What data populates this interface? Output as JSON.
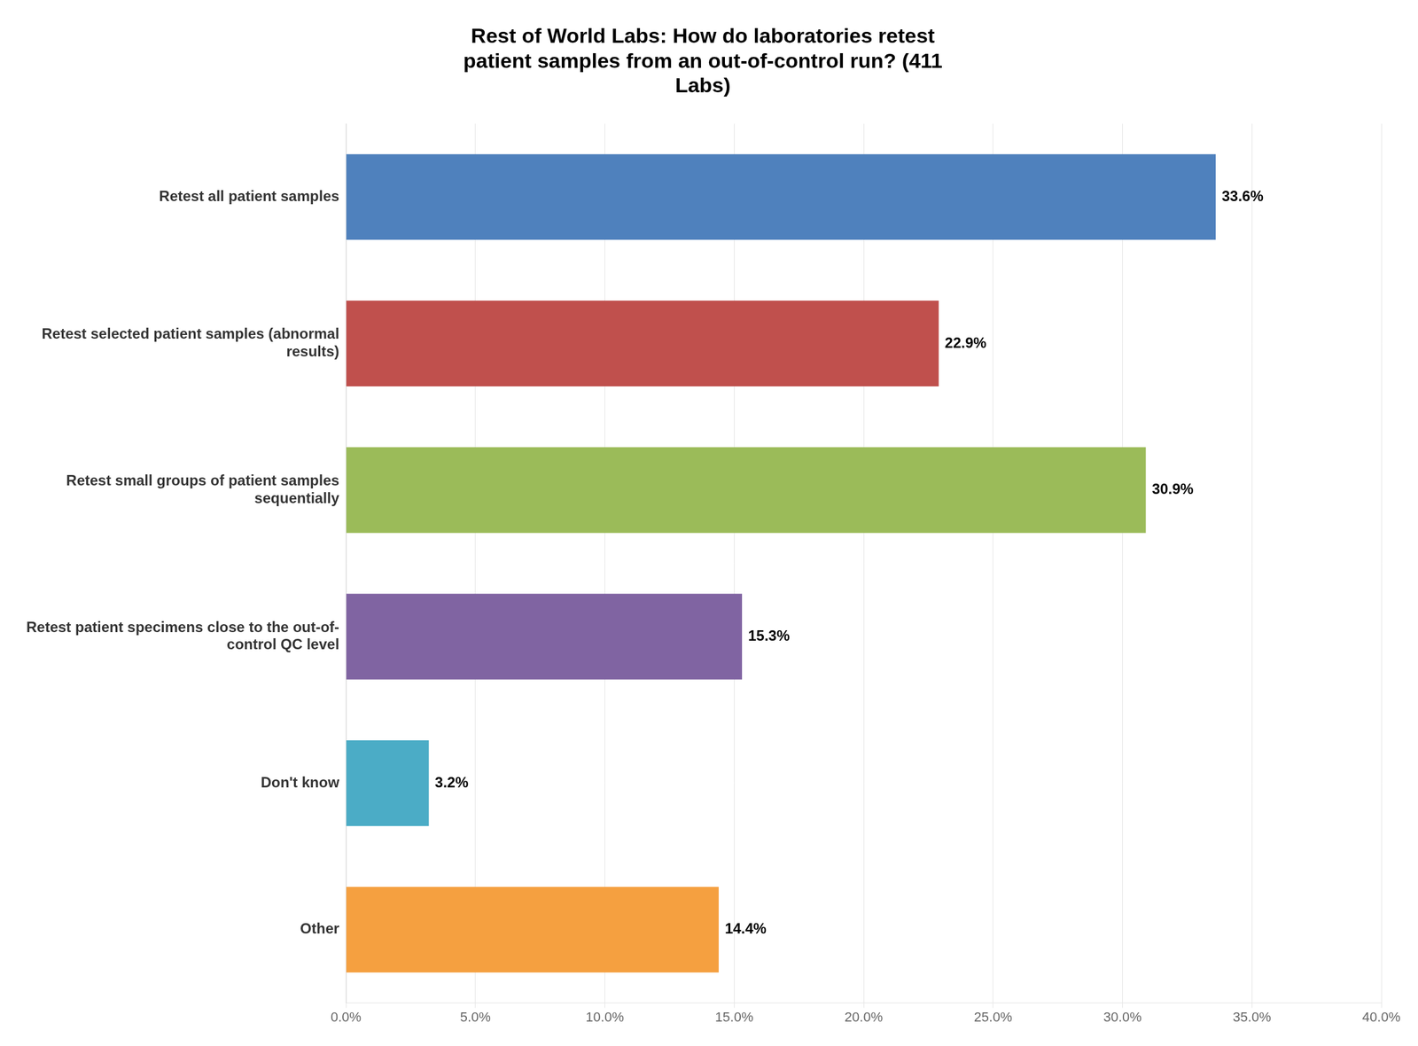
{
  "chart_data": {
    "type": "bar",
    "orientation": "horizontal",
    "title": "Rest of World Labs: How do laboratories retest\npatient samples from an out-of-control run? (411\nLabs)",
    "categories": [
      "Retest all patient samples",
      "Retest selected patient samples (abnormal\nresults)",
      "Retest small groups of patient samples\nsequentially",
      "Retest patient specimens close to the out-of-\ncontrol QC level",
      "Don't know",
      "Other"
    ],
    "values": [
      33.6,
      22.9,
      30.9,
      15.3,
      3.2,
      14.4
    ],
    "value_labels": [
      "33.6%",
      "22.9%",
      "30.9%",
      "15.3%",
      "3.2%",
      "14.4%"
    ],
    "colors": [
      "#4F81BD",
      "#C0504D",
      "#9BBB59",
      "#8064A2",
      "#4BACC6",
      "#F5A040"
    ],
    "data_labels": true,
    "xlim": [
      0,
      40
    ],
    "xticks": [
      {
        "value": 0,
        "label": "0.0%"
      },
      {
        "value": 5,
        "label": "5.0%"
      },
      {
        "value": 10,
        "label": "10.0%"
      },
      {
        "value": 15,
        "label": "15.0%"
      },
      {
        "value": 20,
        "label": "20.0%"
      },
      {
        "value": 25,
        "label": "25.0%"
      },
      {
        "value": 30,
        "label": "30.0%"
      },
      {
        "value": 35,
        "label": "35.0%"
      },
      {
        "value": 40,
        "label": "40.0%"
      }
    ],
    "grid": true
  }
}
